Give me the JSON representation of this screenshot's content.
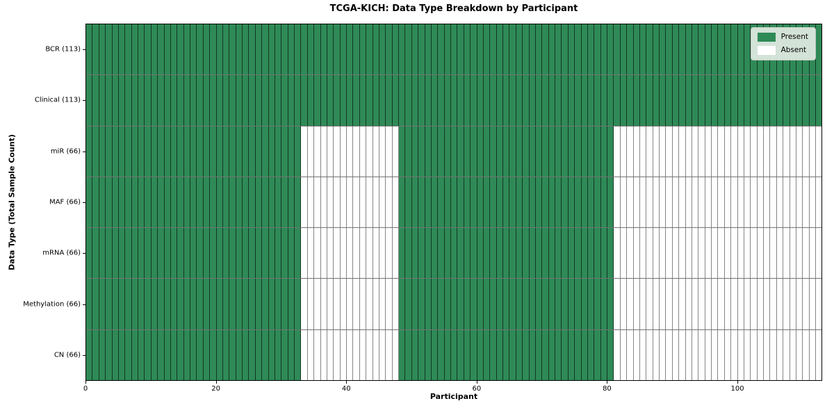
{
  "chart_data": {
    "type": "heatmap",
    "title": "TCGA-KICH: Data Type Breakdown by Participant",
    "xlabel": "Participant",
    "ylabel": "Data Type (Total Sample Count)",
    "n_participants": 113,
    "x_ticks": [
      0,
      20,
      40,
      60,
      80,
      100
    ],
    "xlim": [
      0,
      113
    ],
    "grid": "cell-borders",
    "legend_position": "upper-right",
    "colors": {
      "present": "#2f8a57",
      "absent": "#ffffff"
    },
    "legend": [
      {
        "label": "Present",
        "state": "present",
        "color": "#2f8a57"
      },
      {
        "label": "Absent",
        "state": "absent",
        "color": "#ffffff"
      }
    ],
    "rows": [
      {
        "label": "BCR (113)",
        "data_type": "BCR",
        "present_count": 113,
        "present_runs": [
          [
            0,
            113
          ]
        ]
      },
      {
        "label": "Clinical (113)",
        "data_type": "Clinical",
        "present_count": 113,
        "present_runs": [
          [
            0,
            113
          ]
        ]
      },
      {
        "label": "miR (66)",
        "data_type": "miR",
        "present_count": 66,
        "present_runs": [
          [
            0,
            33
          ],
          [
            48,
            81
          ]
        ]
      },
      {
        "label": "MAF (66)",
        "data_type": "MAF",
        "present_count": 66,
        "present_runs": [
          [
            0,
            33
          ],
          [
            48,
            81
          ]
        ]
      },
      {
        "label": "mRNA (66)",
        "data_type": "mRNA",
        "present_count": 66,
        "present_runs": [
          [
            0,
            33
          ],
          [
            48,
            81
          ]
        ]
      },
      {
        "label": "Methylation (66)",
        "data_type": "Methylation",
        "present_count": 66,
        "present_runs": [
          [
            0,
            33
          ],
          [
            48,
            81
          ]
        ]
      },
      {
        "label": "CN (66)",
        "data_type": "CN",
        "present_count": 66,
        "present_runs": [
          [
            0,
            33
          ],
          [
            48,
            81
          ]
        ]
      }
    ]
  }
}
